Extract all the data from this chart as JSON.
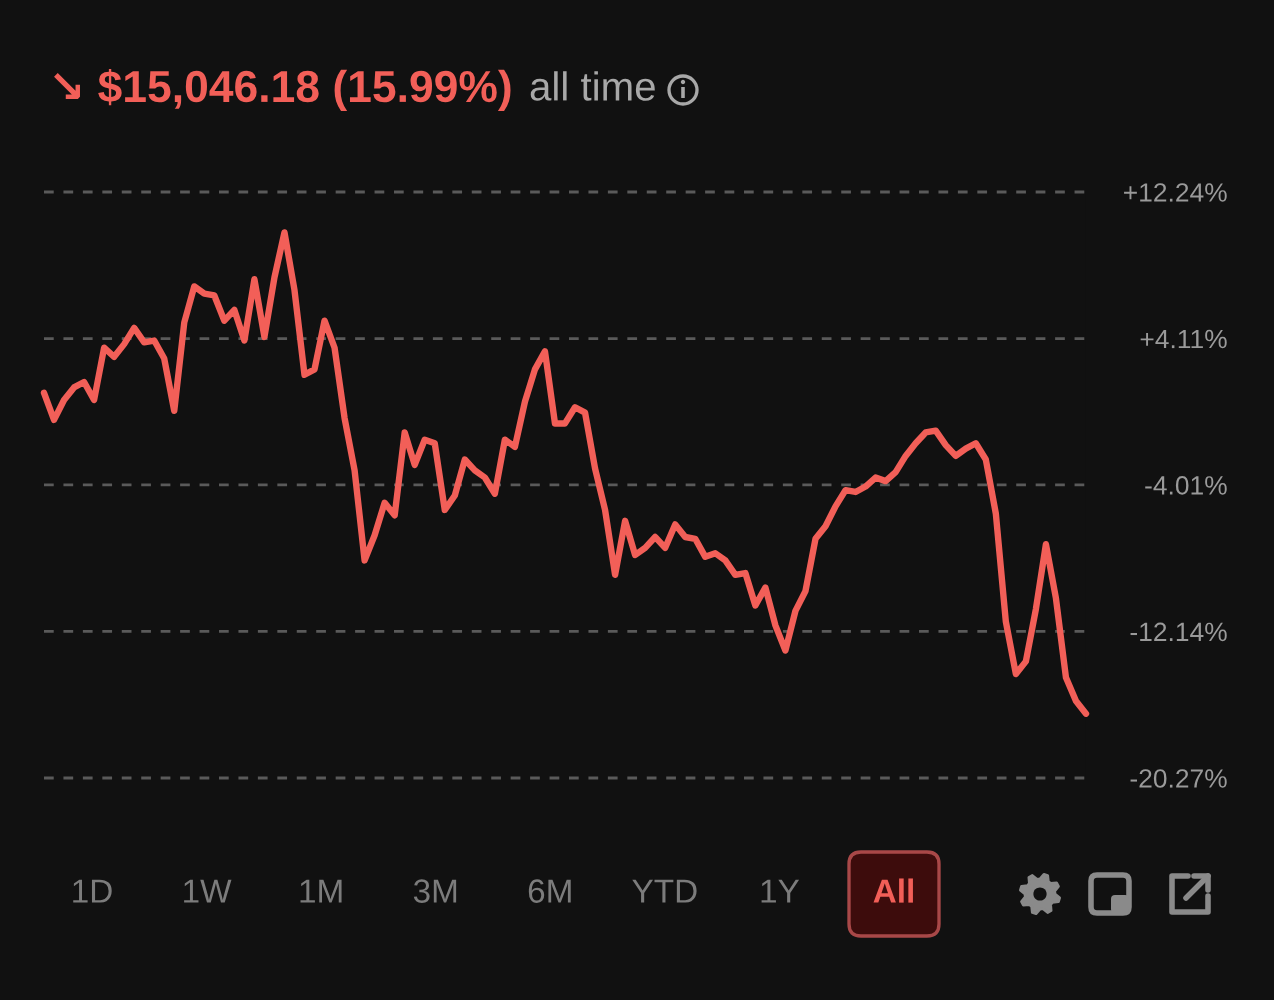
{
  "chart_data": {
    "type": "line",
    "title": "↘ $15,046.18 (15.99%)",
    "subtitle": "all time",
    "categories": [
      null,
      null,
      null,
      null,
      null,
      null,
      null,
      null,
      null,
      null,
      null,
      null,
      null,
      null,
      null,
      null,
      null,
      null,
      null,
      null,
      null,
      null,
      null,
      null,
      null,
      null,
      null,
      null,
      null,
      null,
      null,
      null,
      null,
      null,
      null,
      null,
      null,
      null,
      null,
      null,
      null,
      null,
      null,
      null,
      null,
      null,
      null,
      null,
      null,
      null,
      null,
      null,
      null,
      null,
      null,
      null,
      null,
      null,
      null,
      null,
      null,
      null,
      null,
      null,
      null,
      null,
      null,
      null,
      null,
      null,
      null,
      null,
      null,
      null,
      null,
      null,
      null,
      null,
      null,
      null,
      null,
      null,
      null,
      null,
      null,
      null,
      null,
      null,
      null,
      null,
      null,
      null,
      null,
      null,
      null,
      null,
      null,
      null,
      null,
      null,
      null,
      null,
      null,
      null,
      null
    ],
    "series": [
      {
        "color": "#f25f58",
        "values": [
          1.1,
          -0.4,
          0.7,
          1.4,
          1.7,
          0.7,
          3.6,
          3.1,
          3.8,
          4.7,
          3.9,
          4.0,
          3.0,
          0.1,
          5.0,
          7.0,
          6.6,
          6.5,
          5.1,
          5.7,
          4.0,
          7.4,
          4.2,
          7.5,
          10.0,
          6.8,
          2.1,
          2.4,
          5.1,
          3.6,
          -0.3,
          -3.2,
          -8.2,
          -6.8,
          -5.0,
          -5.7,
          -1.1,
          -2.9,
          -1.5,
          -1.7,
          -5.4,
          -4.6,
          -2.6,
          -3.2,
          -3.6,
          -4.5,
          -1.5,
          -1.9,
          0.6,
          2.4,
          3.4,
          -0.6,
          -0.6,
          0.3,
          0.0,
          -3.1,
          -5.4,
          -9.0,
          -6.0,
          -7.9,
          -7.5,
          -6.9,
          -7.5,
          -6.2,
          -6.9,
          -7.0,
          -8.0,
          -7.8,
          -8.2,
          -9.0,
          -8.9,
          -10.7,
          -9.7,
          -11.8,
          -13.2,
          -11.0,
          -9.9,
          -7.0,
          -6.3,
          -5.2,
          -4.3,
          -4.4,
          -4.1,
          -3.6,
          -3.8,
          -3.3,
          -2.4,
          -1.7,
          -1.1,
          -1.0,
          -1.8,
          -2.4,
          -2.0,
          -1.7,
          -2.6,
          -5.6,
          -11.6,
          -14.5,
          -13.8,
          -10.9,
          -7.3,
          -10.3,
          -14.7,
          -16.0,
          -16.7
        ]
      }
    ],
    "ylim": [
      -20.27,
      12.24
    ],
    "yticks": [
      {
        "value": 12.24,
        "label": "+12.24%"
      },
      {
        "value": 4.11,
        "label": "+4.11%"
      },
      {
        "value": -4.01,
        "label": "-4.01%"
      },
      {
        "value": -12.14,
        "label": "-12.14%"
      },
      {
        "value": -20.27,
        "label": "-20.27%"
      }
    ],
    "tick_labels": "y",
    "grid": "y",
    "annotations": [
      "1D",
      "1W",
      "1M",
      "3M",
      "6M",
      "YTD",
      "1Y",
      "All"
    ]
  }
}
